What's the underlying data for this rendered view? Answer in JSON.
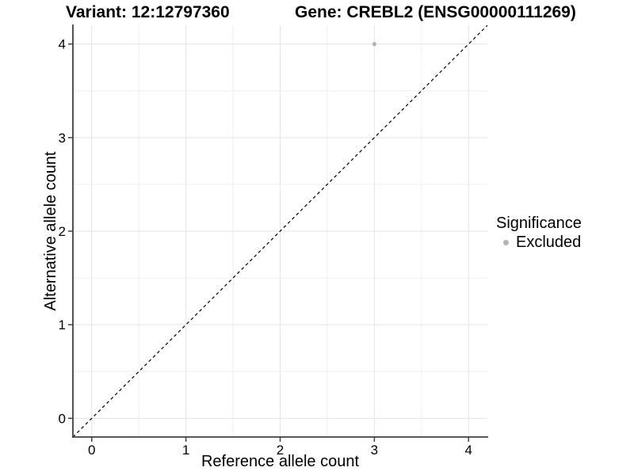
{
  "chart_data": {
    "type": "scatter",
    "titles": [
      "Variant: 12:12797360",
      "Gene: CREBL2 (ENSG00000111269)"
    ],
    "xlabel": "Reference allele count",
    "ylabel": "Alternative allele count",
    "xlim": [
      -0.2,
      4.2
    ],
    "ylim": [
      -0.2,
      4.2
    ],
    "xticks": [
      0,
      1,
      2,
      3,
      4
    ],
    "yticks": [
      0,
      1,
      2,
      3,
      4
    ],
    "minor_grid_step": 0.5,
    "grid": "on",
    "legend_position": "right-middle",
    "reference_line": {
      "kind": "identity y=x",
      "style": "dashed",
      "color": "#000000"
    },
    "legend": {
      "title": "Significance",
      "items": [
        {
          "label": "Excluded",
          "color": "#b3b3b3",
          "marker": "circle"
        }
      ]
    },
    "series": [
      {
        "name": "Excluded",
        "color": "#b3b3b3",
        "points": [
          {
            "x": 3,
            "y": 4
          }
        ]
      }
    ]
  },
  "colors": {
    "background": "#ffffff",
    "grid_major": "#e4e4e4",
    "grid_minor": "#f0f0f0",
    "axis_line": "#404040",
    "tick_mark": "#404040",
    "tick_text": "#000000",
    "point": "#b3b3b3",
    "identity_line": "#000000"
  }
}
